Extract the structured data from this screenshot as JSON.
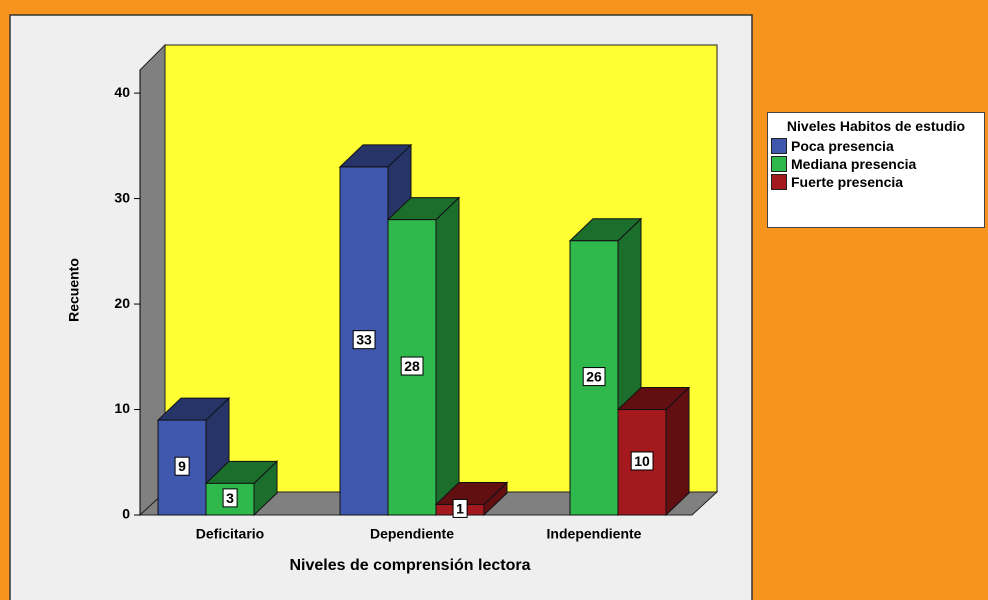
{
  "chart_data": {
    "type": "bar3d",
    "categories": [
      "Deficitario",
      "Dependiente",
      "Independiente"
    ],
    "series": [
      {
        "name": "Poca presencia",
        "color": "#3f57ad",
        "values": [
          9,
          33,
          null
        ]
      },
      {
        "name": "Mediana presencia",
        "color": "#2fb84b",
        "values": [
          3,
          28,
          26
        ]
      },
      {
        "name": "Fuerte presencia",
        "color": "#a3191e",
        "values": [
          null,
          1,
          10
        ]
      }
    ],
    "legend_title": "Niveles Habitos de estudio",
    "xlabel": "Niveles de comprensión lectora",
    "ylabel": "Recuento",
    "ylim": [
      0,
      42
    ],
    "yticks": [
      0,
      10,
      20,
      30,
      40
    ]
  }
}
